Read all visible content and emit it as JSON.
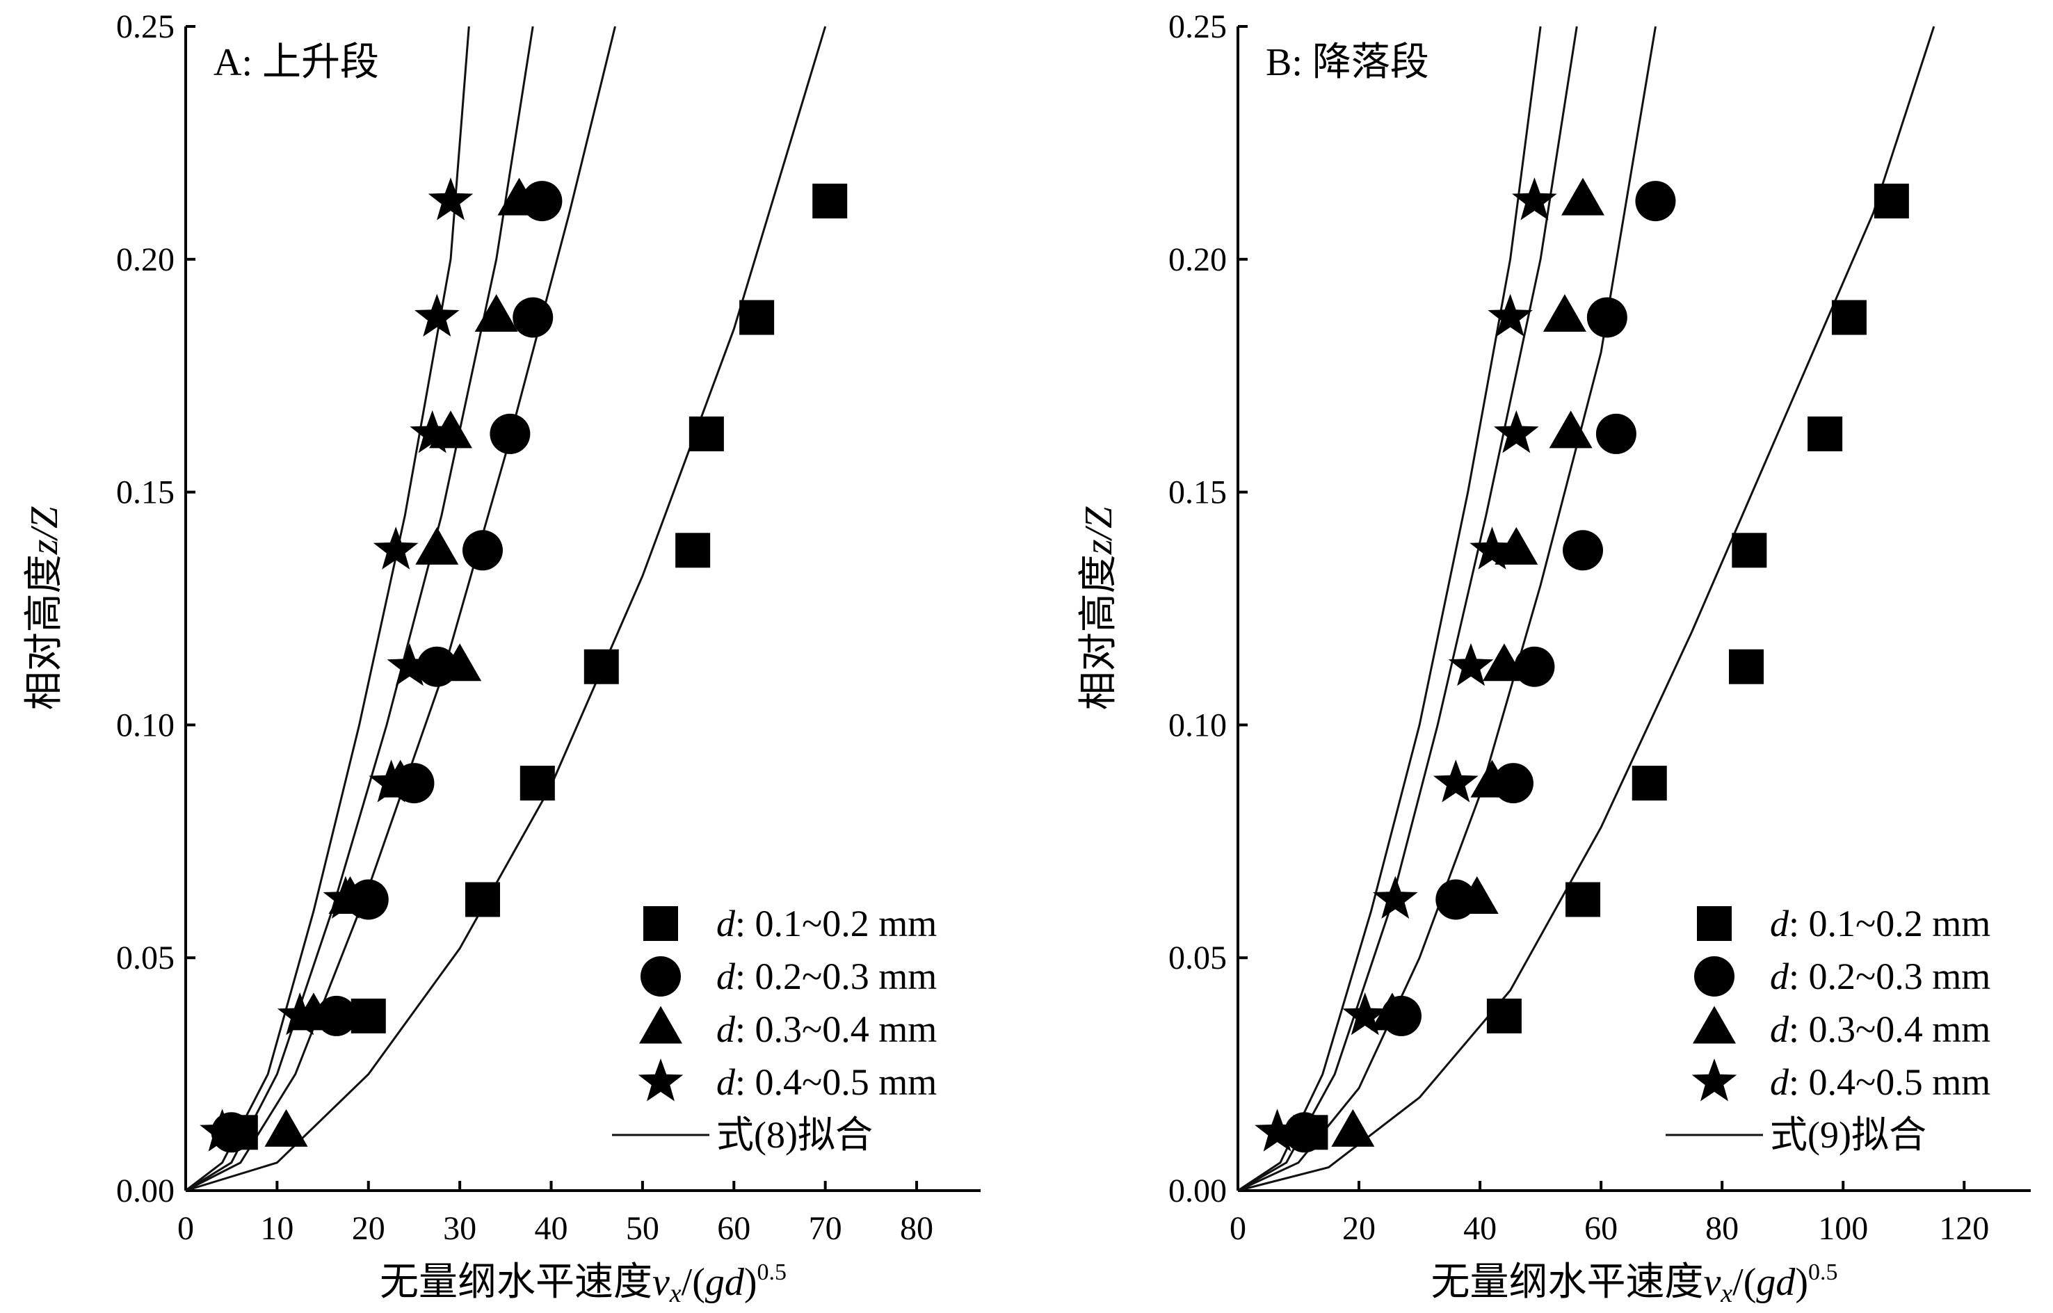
{
  "chart_data": [
    {
      "type": "scatter",
      "panel_label": "A: 上升段",
      "xlabel": "无量纲水平速度",
      "xlabel_var": "v",
      "xlabel_sub": "x",
      "xlabel_tail": "/(",
      "xlabel_g": "gd",
      "xlabel_close": ")",
      "xlabel_sup": "0.5",
      "ylabel": "相对高度",
      "ylabel_var": "z/Z",
      "xlim": [
        0,
        87
      ],
      "ylim": [
        0,
        0.25
      ],
      "xticks": [
        0,
        10,
        20,
        30,
        40,
        50,
        60,
        70,
        80
      ],
      "yticks": [
        0.0,
        0.05,
        0.1,
        0.15,
        0.2,
        0.25
      ],
      "ytick_labels": [
        "0.00",
        "0.05",
        "0.10",
        "0.15",
        "0.20",
        "0.25"
      ],
      "legend_position": "bottom-right",
      "fit_label": "式(8)拟合",
      "series": [
        {
          "name": "0.1~0.2 mm",
          "name_prefix": "d",
          "marker": "square",
          "points": [
            [
              6,
              0.0125
            ],
            [
              20,
              0.0375
            ],
            [
              32.5,
              0.0625
            ],
            [
              38.5,
              0.0875
            ],
            [
              45.5,
              0.1125
            ],
            [
              55.5,
              0.1375
            ],
            [
              57,
              0.1625
            ],
            [
              62.5,
              0.1875
            ],
            [
              70.5,
              0.2125
            ]
          ],
          "fit": [
            [
              0,
              0
            ],
            [
              10,
              0.006
            ],
            [
              20,
              0.025
            ],
            [
              30,
              0.052
            ],
            [
              40,
              0.087
            ],
            [
              50,
              0.132
            ],
            [
              60,
              0.185
            ],
            [
              70,
              0.25
            ]
          ]
        },
        {
          "name": "0.2~0.3 mm",
          "name_prefix": "d",
          "marker": "circle",
          "points": [
            [
              5,
              0.0125
            ],
            [
              16.5,
              0.0375
            ],
            [
              20,
              0.0625
            ],
            [
              25,
              0.0875
            ],
            [
              27.5,
              0.1125
            ],
            [
              32.5,
              0.1375
            ],
            [
              35.5,
              0.1625
            ],
            [
              38,
              0.1875
            ],
            [
              39,
              0.2125
            ]
          ],
          "fit": [
            [
              0,
              0
            ],
            [
              6,
              0.006
            ],
            [
              12,
              0.025
            ],
            [
              20,
              0.065
            ],
            [
              28,
              0.11
            ],
            [
              35,
              0.158
            ],
            [
              42,
              0.21
            ],
            [
              47,
              0.25
            ]
          ]
        },
        {
          "name": "0.3~0.4 mm",
          "name_prefix": "d",
          "marker": "triangle",
          "points": [
            [
              11,
              0.0125
            ],
            [
              14,
              0.0375
            ],
            [
              18,
              0.0625
            ],
            [
              23.5,
              0.0875
            ],
            [
              30,
              0.1125
            ],
            [
              27.5,
              0.1375
            ],
            [
              29,
              0.1625
            ],
            [
              34,
              0.1875
            ],
            [
              36.5,
              0.2125
            ]
          ],
          "fit": [
            [
              0,
              0
            ],
            [
              5,
              0.006
            ],
            [
              10,
              0.025
            ],
            [
              16,
              0.06
            ],
            [
              22,
              0.1
            ],
            [
              28,
              0.145
            ],
            [
              34,
              0.2
            ],
            [
              38,
              0.25
            ]
          ]
        },
        {
          "name": "0.4~0.5 mm",
          "name_prefix": "d",
          "marker": "star",
          "points": [
            [
              4,
              0.0125
            ],
            [
              12.5,
              0.0375
            ],
            [
              17.5,
              0.0625
            ],
            [
              22.5,
              0.0875
            ],
            [
              24.5,
              0.1125
            ],
            [
              23,
              0.1375
            ],
            [
              27,
              0.1625
            ],
            [
              27.5,
              0.1875
            ],
            [
              29,
              0.2125
            ]
          ],
          "fit": [
            [
              0,
              0
            ],
            [
              4,
              0.006
            ],
            [
              9,
              0.025
            ],
            [
              14,
              0.06
            ],
            [
              19,
              0.1
            ],
            [
              24,
              0.145
            ],
            [
              29,
              0.2
            ],
            [
              31,
              0.25
            ]
          ]
        }
      ]
    },
    {
      "type": "scatter",
      "panel_label": "B: 降落段",
      "xlabel": "无量纲水平速度",
      "xlabel_var": "v",
      "xlabel_sub": "x",
      "xlabel_tail": "/(",
      "xlabel_g": "gd",
      "xlabel_close": ")",
      "xlabel_sup": "0.5",
      "ylabel": "相对高度",
      "ylabel_var": "z/Z",
      "xlim": [
        0,
        131
      ],
      "ylim": [
        0,
        0.25
      ],
      "xticks": [
        0,
        20,
        40,
        60,
        80,
        100,
        120
      ],
      "yticks": [
        0.0,
        0.05,
        0.1,
        0.15,
        0.2,
        0.25
      ],
      "ytick_labels": [
        "0.00",
        "0.05",
        "0.10",
        "0.15",
        "0.20",
        "0.25"
      ],
      "legend_position": "bottom-right",
      "fit_label": "式(9)拟合",
      "series": [
        {
          "name": "0.1~0.2 mm",
          "name_prefix": "d",
          "marker": "square",
          "points": [
            [
              12,
              0.0125
            ],
            [
              44,
              0.0375
            ],
            [
              57,
              0.0625
            ],
            [
              68,
              0.0875
            ],
            [
              84,
              0.1125
            ],
            [
              84.5,
              0.1375
            ],
            [
              97,
              0.1625
            ],
            [
              101,
              0.1875
            ],
            [
              108,
              0.2125
            ]
          ],
          "fit": [
            [
              0,
              0
            ],
            [
              15,
              0.005
            ],
            [
              30,
              0.02
            ],
            [
              45,
              0.043
            ],
            [
              60,
              0.078
            ],
            [
              75,
              0.12
            ],
            [
              90,
              0.165
            ],
            [
              105,
              0.21
            ],
            [
              115,
              0.25
            ]
          ]
        },
        {
          "name": "0.2~0.3 mm",
          "name_prefix": "d",
          "marker": "circle",
          "points": [
            [
              11,
              0.0125
            ],
            [
              27,
              0.0375
            ],
            [
              36,
              0.0625
            ],
            [
              45.5,
              0.0875
            ],
            [
              49,
              0.1125
            ],
            [
              57,
              0.1375
            ],
            [
              62.5,
              0.1625
            ],
            [
              61,
              0.1875
            ],
            [
              69,
              0.2125
            ]
          ],
          "fit": [
            [
              0,
              0
            ],
            [
              10,
              0.006
            ],
            [
              20,
              0.022
            ],
            [
              30,
              0.05
            ],
            [
              40,
              0.085
            ],
            [
              50,
              0.13
            ],
            [
              60,
              0.18
            ],
            [
              69,
              0.25
            ]
          ]
        },
        {
          "name": "0.3~0.4 mm",
          "name_prefix": "d",
          "marker": "triangle",
          "points": [
            [
              19,
              0.0125
            ],
            [
              25.5,
              0.0375
            ],
            [
              39.5,
              0.0625
            ],
            [
              42,
              0.0875
            ],
            [
              44,
              0.1125
            ],
            [
              46,
              0.1375
            ],
            [
              55,
              0.1625
            ],
            [
              54,
              0.1875
            ],
            [
              57,
              0.2125
            ]
          ],
          "fit": [
            [
              0,
              0
            ],
            [
              8,
              0.006
            ],
            [
              16,
              0.025
            ],
            [
              25,
              0.06
            ],
            [
              33,
              0.1
            ],
            [
              41,
              0.145
            ],
            [
              50,
              0.2
            ],
            [
              56,
              0.25
            ]
          ]
        },
        {
          "name": "0.4~0.5 mm",
          "name_prefix": "d",
          "marker": "star",
          "points": [
            [
              6.5,
              0.0125
            ],
            [
              21,
              0.0375
            ],
            [
              26,
              0.0625
            ],
            [
              36,
              0.0875
            ],
            [
              38.5,
              0.1125
            ],
            [
              42,
              0.1375
            ],
            [
              46,
              0.1625
            ],
            [
              45,
              0.1875
            ],
            [
              49,
              0.2125
            ]
          ],
          "fit": [
            [
              0,
              0
            ],
            [
              7,
              0.006
            ],
            [
              14,
              0.025
            ],
            [
              22,
              0.06
            ],
            [
              30,
              0.1
            ],
            [
              38,
              0.15
            ],
            [
              45,
              0.2
            ],
            [
              50,
              0.25
            ]
          ]
        }
      ]
    }
  ]
}
